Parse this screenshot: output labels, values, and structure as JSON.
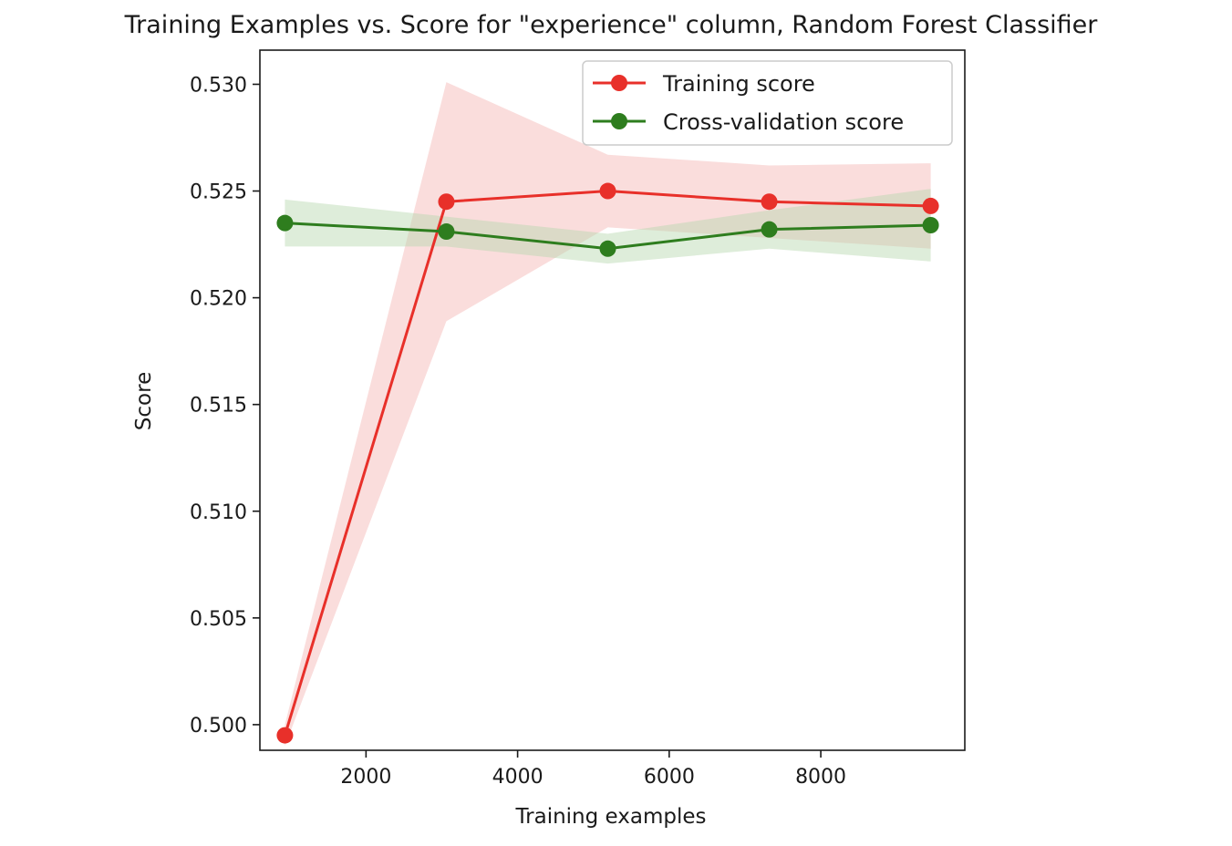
{
  "chart_data": {
    "type": "line",
    "title": "Training Examples vs. Score for \"experience\" column, Random Forest Classifier",
    "xlabel": "Training examples",
    "ylabel": "Score",
    "xlim": [
      600,
      9900
    ],
    "ylim": [
      0.4988,
      0.5316
    ],
    "xticks": [
      2000,
      4000,
      6000,
      8000
    ],
    "xtick_labels": [
      "2000",
      "4000",
      "6000",
      "8000"
    ],
    "yticks": [
      0.5,
      0.505,
      0.51,
      0.515,
      0.52,
      0.525,
      0.53
    ],
    "ytick_labels": [
      "0.500",
      "0.505",
      "0.510",
      "0.515",
      "0.520",
      "0.525",
      "0.530"
    ],
    "grid": false,
    "legend_position": "top-right",
    "x": [
      930,
      3060,
      5190,
      7320,
      9450
    ],
    "series": [
      {
        "name": "Training score",
        "color": "#e8302a",
        "fill_color": "#f4b3b1",
        "values": [
          0.4995,
          0.5245,
          0.525,
          0.5245,
          0.5243
        ],
        "band_upper": [
          0.5,
          0.5301,
          0.5267,
          0.5262,
          0.5263
        ],
        "band_lower": [
          0.499,
          0.5189,
          0.5233,
          0.5228,
          0.5223
        ]
      },
      {
        "name": "Cross-validation score",
        "color": "#2e7d1e",
        "fill_color": "#b5d6ae",
        "values": [
          0.5235,
          0.5231,
          0.5223,
          0.5232,
          0.5234
        ],
        "band_upper": [
          0.5246,
          0.5238,
          0.523,
          0.5241,
          0.5251
        ],
        "band_lower": [
          0.5224,
          0.5224,
          0.5216,
          0.5223,
          0.5217
        ]
      }
    ]
  }
}
